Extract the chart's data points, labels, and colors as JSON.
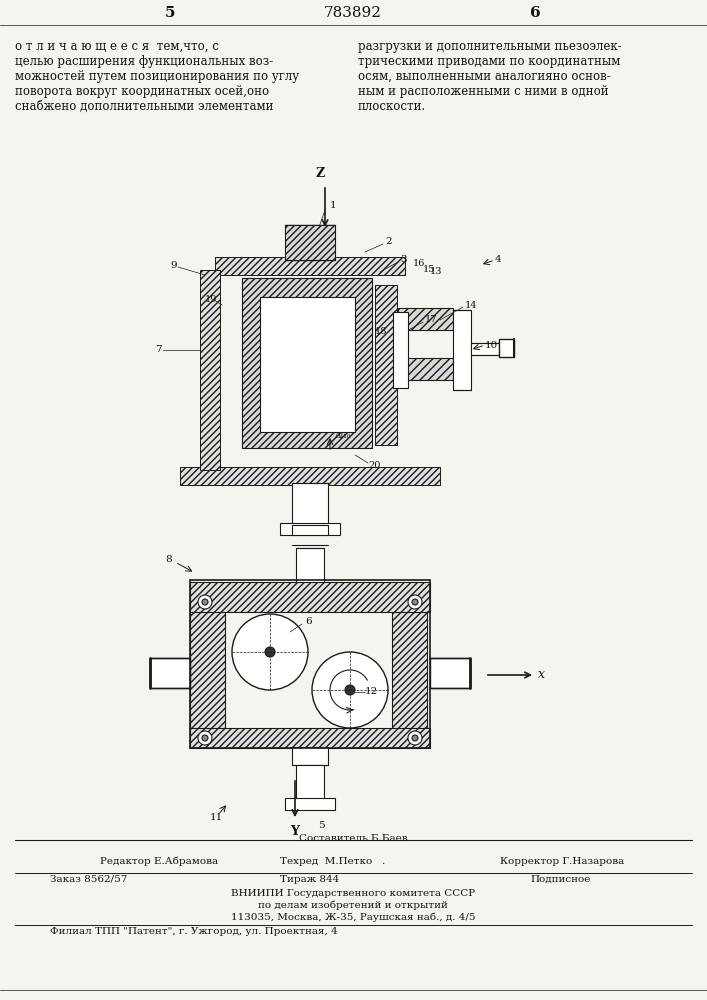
{
  "page_number_left": "5",
  "page_number_center": "783892",
  "page_number_right": "6",
  "text_left": "о т л и ч а ю щ е е с я  тем,что, с\nцелью расширения функциональных воз-\nможностей путем позиционирования по углу\nповорота вокруг координатных осей,оно\nснабжено дополнительными элементами",
  "text_right": "разгрузки и дополнительными пьезоэлек-\nтрическими приводами по координатным\nосям, выполненными аналогияно основ-\nным и расположенными с ними в одной\nплоскости.",
  "footer_line1_col1": "Составитель Б.Баев",
  "footer_line2_col1": "Редактор Е.Абрамова",
  "footer_line2_col2": "Техред  М.Петко   .",
  "footer_line2_col3": "Корректор Г.Назарова",
  "footer_line3_col1": "Заказ 8562/57",
  "footer_line3_col2": "Тираж 844",
  "footer_line3_col3": "Подписное",
  "footer_line4": "ВНИИПИ Государственного комитета СССР",
  "footer_line5": "по делам изобретений и открытий",
  "footer_line6": "113035, Москва, Ж-35, Раушская наб., д. 4/5",
  "footer_line7": "Филиал ТПП \"Патент\", г. Ужгород, ул. Проектная, 4",
  "bg_color": "#f5f5f0",
  "line_color": "#1a1a1a",
  "hatch_color": "#333333",
  "text_color": "#111111"
}
